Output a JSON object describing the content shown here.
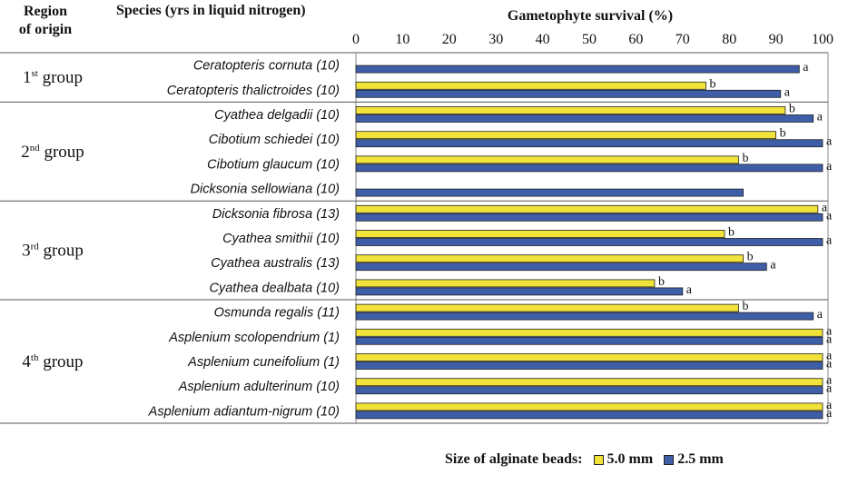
{
  "headers": {
    "region_line1": "Region",
    "region_line2": "of origin",
    "species": "Species (yrs in liquid nitrogen)"
  },
  "legend": {
    "title": "Size of alginate beads:",
    "items": [
      {
        "label": "5.0 mm",
        "color": "#f2e33a"
      },
      {
        "label": "2.5 mm",
        "color": "#3e5ea8"
      }
    ]
  },
  "chart_data": {
    "type": "bar",
    "orientation": "horizontal",
    "title": "Gametophyte survival (%)",
    "xlim": [
      0,
      100
    ],
    "xticks": [
      "0",
      "10",
      "20",
      "30",
      "40",
      "50",
      "60",
      "70",
      "80",
      "90",
      "100"
    ],
    "grid": false,
    "legend_position": "bottom-right",
    "groups": [
      {
        "label": "1",
        "suffix": "st",
        "word": "group",
        "start": 0,
        "count": 2
      },
      {
        "label": "2",
        "suffix": "nd",
        "word": "group",
        "start": 2,
        "count": 4
      },
      {
        "label": "3",
        "suffix": "rd",
        "word": "group",
        "start": 6,
        "count": 4
      },
      {
        "label": "4",
        "suffix": "th",
        "word": "group",
        "start": 10,
        "count": 5
      }
    ],
    "categories": [
      "Ceratopteris cornuta (10)",
      "Ceratopteris thalictroides (10)",
      "Cyathea delgadii (10)",
      "Cibotium schiedei (10)",
      "Cibotium glaucum (10)",
      "Dicksonia sellowiana (10)",
      "Dicksonia fibrosa (13)",
      "Cyathea smithii (10)",
      "Cyathea australis (13)",
      "Cyathea dealbata (10)",
      "Osmunda regalis (11)",
      "Asplenium scolopendrium (1)",
      "Asplenium cuneifolium (1)",
      "Asplenium adulterinum (10)",
      "Asplenium adiantum-nigrum (10)"
    ],
    "series": [
      {
        "name": "5.0 mm",
        "color": "#f2e33a",
        "values": [
          null,
          75,
          92,
          90,
          82,
          null,
          99,
          79,
          83,
          64,
          82,
          100,
          100,
          100,
          100
        ],
        "labels": [
          "",
          "b",
          "b",
          "b",
          "b",
          "",
          "a",
          "b",
          "b",
          "b",
          "b",
          "a",
          "a",
          "a",
          "a"
        ]
      },
      {
        "name": "2.5 mm",
        "color": "#3e5ea8",
        "values": [
          95,
          91,
          98,
          100,
          100,
          83,
          100,
          100,
          88,
          70,
          98,
          100,
          100,
          100,
          100
        ],
        "labels": [
          "a",
          "a",
          "a",
          "a",
          "a",
          "",
          "a",
          "a",
          "a",
          "a",
          "a",
          "a",
          "a",
          "a",
          "a"
        ]
      }
    ]
  }
}
